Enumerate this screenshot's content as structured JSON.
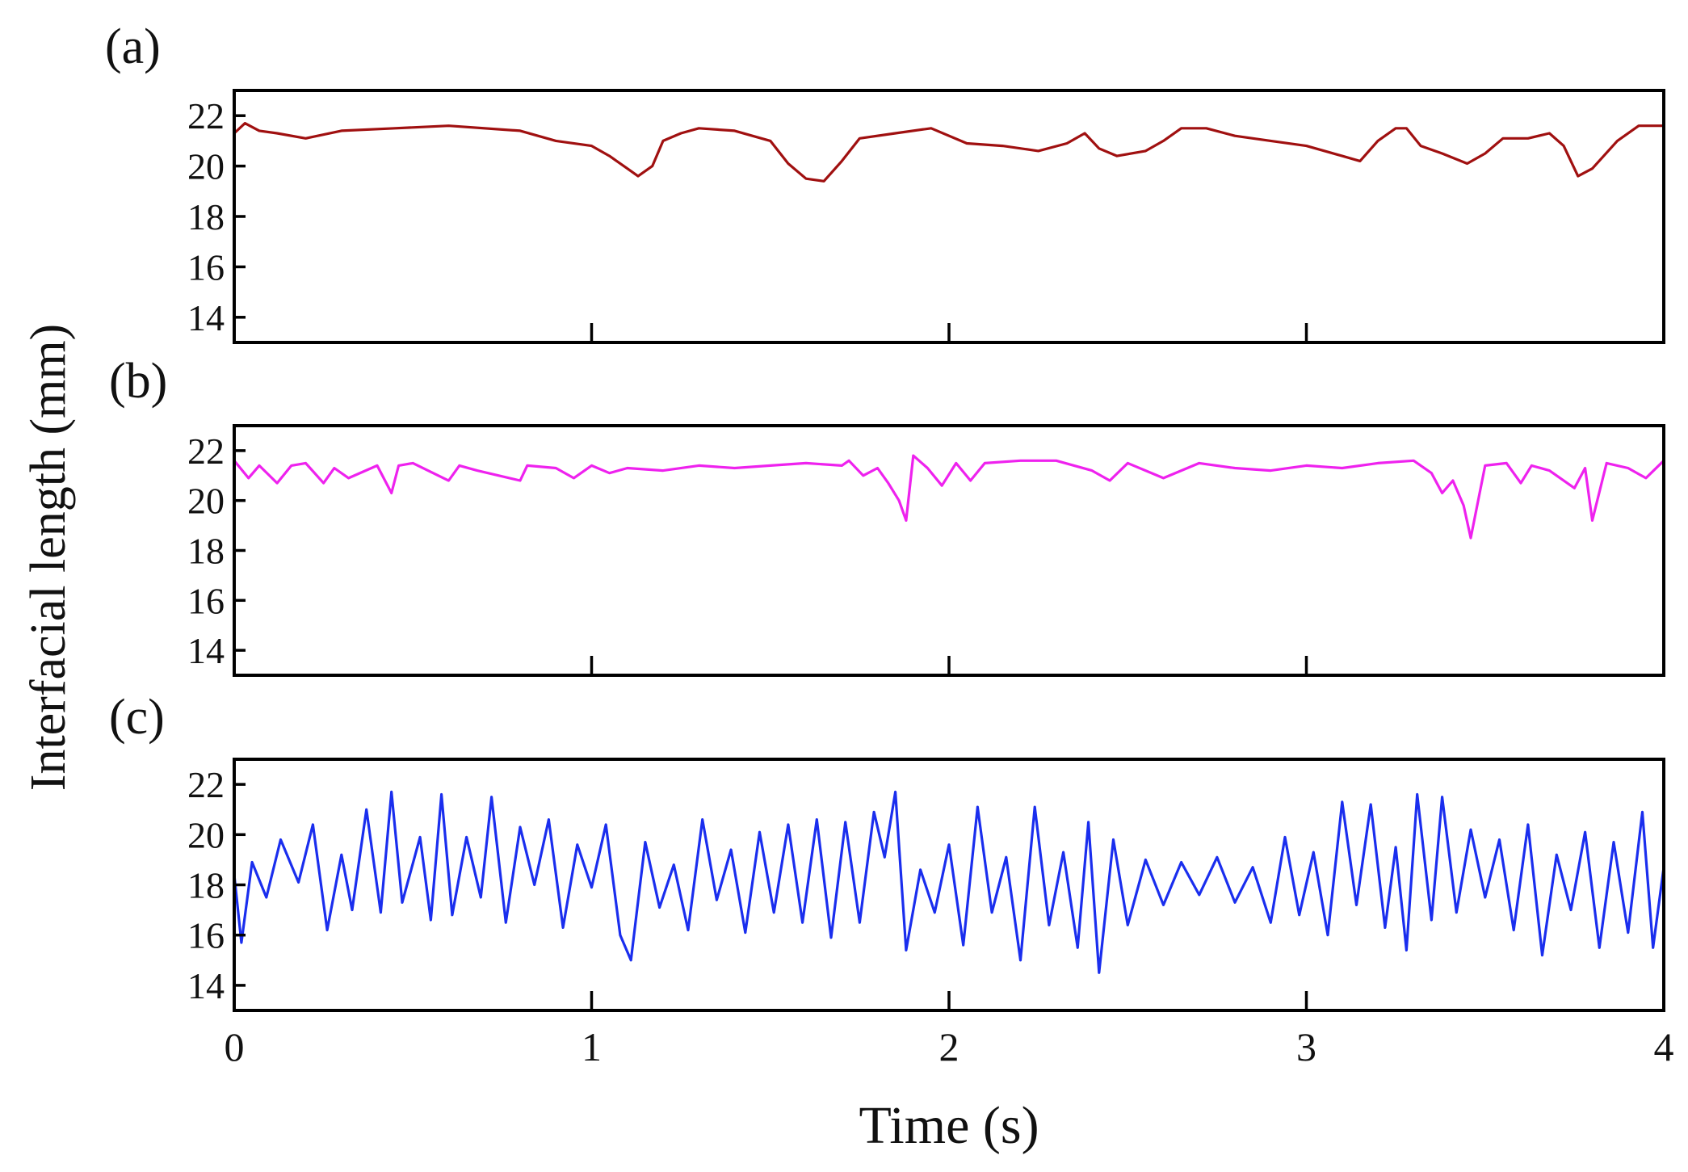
{
  "chart_data": [
    {
      "type": "line",
      "panel_label": "(a)",
      "xlim": [
        0,
        4
      ],
      "ylim": [
        13,
        23
      ],
      "yticks": [
        14,
        16,
        18,
        20,
        22
      ],
      "xticks": [
        1,
        2,
        3
      ],
      "x_tick_labels_shown": false,
      "color": "#a01010",
      "series": [
        {
          "x": [
            0,
            0.03,
            0.07,
            0.12,
            0.2,
            0.3,
            0.45,
            0.6,
            0.8,
            0.9,
            1.0,
            1.05,
            1.1,
            1.13,
            1.17,
            1.2,
            1.25,
            1.3,
            1.4,
            1.45,
            1.5,
            1.55,
            1.6,
            1.65,
            1.7,
            1.75,
            1.85,
            1.95,
            2.05,
            2.15,
            2.25,
            2.33,
            2.38,
            2.42,
            2.47,
            2.55,
            2.6,
            2.65,
            2.72,
            2.8,
            2.9,
            3.0,
            3.1,
            3.15,
            3.2,
            3.25,
            3.28,
            3.32,
            3.38,
            3.45,
            3.5,
            3.55,
            3.62,
            3.68,
            3.72,
            3.76,
            3.8,
            3.87,
            3.93,
            4.0
          ],
          "y": [
            21.3,
            21.7,
            21.4,
            21.3,
            21.1,
            21.4,
            21.5,
            21.6,
            21.4,
            21.0,
            20.8,
            20.4,
            19.9,
            19.6,
            20.0,
            21.0,
            21.3,
            21.5,
            21.4,
            21.2,
            21.0,
            20.1,
            19.5,
            19.4,
            20.2,
            21.1,
            21.3,
            21.5,
            20.9,
            20.8,
            20.6,
            20.9,
            21.3,
            20.7,
            20.4,
            20.6,
            21.0,
            21.5,
            21.5,
            21.2,
            21.0,
            20.8,
            20.4,
            20.2,
            21.0,
            21.5,
            21.5,
            20.8,
            20.5,
            20.1,
            20.5,
            21.1,
            21.1,
            21.3,
            20.8,
            19.6,
            19.9,
            21.0,
            21.6,
            21.6
          ]
        }
      ]
    },
    {
      "type": "line",
      "panel_label": "(b)",
      "xlim": [
        0,
        4
      ],
      "ylim": [
        13,
        23
      ],
      "yticks": [
        14,
        16,
        18,
        20,
        22
      ],
      "xticks": [
        1,
        2,
        3
      ],
      "x_tick_labels_shown": false,
      "color": "#ee22ee",
      "series": [
        {
          "x": [
            0,
            0.04,
            0.07,
            0.12,
            0.16,
            0.2,
            0.25,
            0.28,
            0.32,
            0.4,
            0.44,
            0.46,
            0.5,
            0.6,
            0.63,
            0.68,
            0.8,
            0.82,
            0.9,
            0.95,
            1.0,
            1.05,
            1.1,
            1.2,
            1.3,
            1.4,
            1.5,
            1.6,
            1.7,
            1.72,
            1.76,
            1.8,
            1.83,
            1.86,
            1.88,
            1.9,
            1.94,
            1.98,
            2.02,
            2.06,
            2.1,
            2.2,
            2.3,
            2.4,
            2.45,
            2.5,
            2.6,
            2.7,
            2.8,
            2.9,
            3.0,
            3.1,
            3.2,
            3.3,
            3.35,
            3.38,
            3.41,
            3.44,
            3.46,
            3.5,
            3.56,
            3.6,
            3.63,
            3.68,
            3.75,
            3.78,
            3.8,
            3.84,
            3.9,
            3.95,
            4.0
          ],
          "y": [
            21.6,
            20.9,
            21.4,
            20.7,
            21.4,
            21.5,
            20.7,
            21.3,
            20.9,
            21.4,
            20.3,
            21.4,
            21.5,
            20.8,
            21.4,
            21.2,
            20.8,
            21.4,
            21.3,
            20.9,
            21.4,
            21.1,
            21.3,
            21.2,
            21.4,
            21.3,
            21.4,
            21.5,
            21.4,
            21.6,
            21.0,
            21.3,
            20.7,
            20.0,
            19.2,
            21.8,
            21.3,
            20.6,
            21.5,
            20.8,
            21.5,
            21.6,
            21.6,
            21.2,
            20.8,
            21.5,
            20.9,
            21.5,
            21.3,
            21.2,
            21.4,
            21.3,
            21.5,
            21.6,
            21.1,
            20.3,
            20.8,
            19.8,
            18.5,
            21.4,
            21.5,
            20.7,
            21.4,
            21.2,
            20.5,
            21.3,
            19.2,
            21.5,
            21.3,
            20.9,
            21.6
          ]
        }
      ]
    },
    {
      "type": "line",
      "panel_label": "(c)",
      "xlim": [
        0,
        4
      ],
      "ylim": [
        13,
        23
      ],
      "yticks": [
        14,
        16,
        18,
        20,
        22
      ],
      "xticks": [
        0,
        1,
        2,
        3,
        4
      ],
      "x_tick_labels": [
        "0",
        "1",
        "2",
        "3",
        "4"
      ],
      "xlabel": "Time (s)",
      "color": "#1a2eee",
      "series": [
        {
          "x": [
            0,
            0.02,
            0.05,
            0.09,
            0.13,
            0.18,
            0.22,
            0.26,
            0.3,
            0.33,
            0.37,
            0.41,
            0.44,
            0.47,
            0.52,
            0.55,
            0.58,
            0.61,
            0.65,
            0.69,
            0.72,
            0.76,
            0.8,
            0.84,
            0.88,
            0.92,
            0.96,
            1.0,
            1.04,
            1.08,
            1.11,
            1.15,
            1.19,
            1.23,
            1.27,
            1.31,
            1.35,
            1.39,
            1.43,
            1.47,
            1.51,
            1.55,
            1.59,
            1.63,
            1.67,
            1.71,
            1.75,
            1.79,
            1.82,
            1.85,
            1.88,
            1.92,
            1.96,
            2.0,
            2.04,
            2.08,
            2.12,
            2.16,
            2.2,
            2.24,
            2.28,
            2.32,
            2.36,
            2.39,
            2.42,
            2.46,
            2.5,
            2.55,
            2.6,
            2.65,
            2.7,
            2.75,
            2.8,
            2.85,
            2.9,
            2.94,
            2.98,
            3.02,
            3.06,
            3.1,
            3.14,
            3.18,
            3.22,
            3.25,
            3.28,
            3.31,
            3.35,
            3.38,
            3.42,
            3.46,
            3.5,
            3.54,
            3.58,
            3.62,
            3.66,
            3.7,
            3.74,
            3.78,
            3.82,
            3.86,
            3.9,
            3.94,
            3.97,
            4.0
          ],
          "y": [
            18.4,
            15.7,
            18.9,
            17.5,
            19.8,
            18.1,
            20.4,
            16.2,
            19.2,
            17.0,
            21.0,
            16.9,
            21.7,
            17.3,
            19.9,
            16.6,
            21.6,
            16.8,
            19.9,
            17.5,
            21.5,
            16.5,
            20.3,
            18.0,
            20.6,
            16.3,
            19.6,
            17.9,
            20.4,
            16.0,
            15.0,
            19.7,
            17.1,
            18.8,
            16.2,
            20.6,
            17.4,
            19.4,
            16.1,
            20.1,
            16.9,
            20.4,
            16.5,
            20.6,
            15.9,
            20.5,
            16.5,
            20.9,
            19.1,
            21.7,
            15.4,
            18.6,
            16.9,
            19.6,
            15.6,
            21.1,
            16.9,
            19.1,
            15.0,
            21.1,
            16.4,
            19.3,
            15.5,
            20.5,
            14.5,
            19.8,
            16.4,
            19.0,
            17.2,
            18.9,
            17.6,
            19.1,
            17.3,
            18.7,
            16.5,
            19.9,
            16.8,
            19.3,
            16.0,
            21.3,
            17.2,
            21.2,
            16.3,
            19.5,
            15.4,
            21.6,
            16.6,
            21.5,
            16.9,
            20.2,
            17.5,
            19.8,
            16.2,
            20.4,
            15.2,
            19.2,
            17.0,
            20.1,
            15.5,
            19.7,
            16.1,
            20.9,
            15.5,
            18.7
          ]
        }
      ]
    }
  ],
  "figure": {
    "ylabel": "Interfacial length (mm)"
  }
}
